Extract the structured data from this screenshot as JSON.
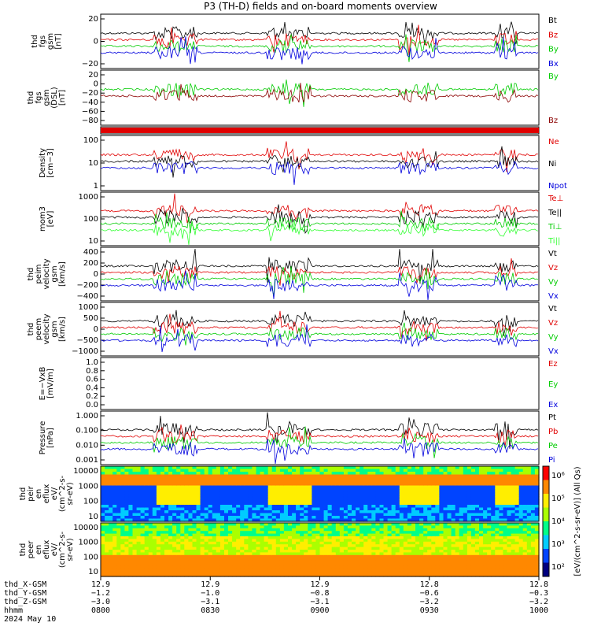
{
  "title": "P3 (TH-D) fields and on-board moments overview",
  "colors": {
    "black": "#000000",
    "red": "#e00000",
    "green": "#00cc00",
    "blue": "#0000dd",
    "darkred": "#8b0000",
    "brightgreen": "#33ff33"
  },
  "chart_data": [
    {
      "type": "line",
      "ylabel": [
        "thd",
        "fgs",
        "gsm",
        "[nT]"
      ],
      "ticks": [
        "20",
        "0",
        "−20"
      ],
      "legend": [
        {
          "name": "Bt",
          "color": "black"
        },
        {
          "name": "Bz",
          "color": "red"
        },
        {
          "name": "By",
          "color": "green"
        },
        {
          "name": "Bx",
          "color": "blue"
        }
      ]
    },
    {
      "type": "line",
      "ylabel": [
        "thd",
        "fgs",
        "gsm",
        "(DSL)",
        "[nT]"
      ],
      "ticks": [
        "20",
        "0",
        "−20",
        "−40",
        "−60",
        "−80"
      ],
      "legend": [
        {
          "name": "By",
          "color": "green"
        },
        {
          "name": "Bz",
          "color": "darkred"
        }
      ]
    },
    {
      "type": "line",
      "ylabel": [],
      "ticks": [],
      "legend": []
    },
    {
      "type": "line",
      "ylabel": [
        "Density",
        "[cm−3]"
      ],
      "ticks": [
        "100",
        "10",
        "1"
      ],
      "log": true,
      "legend": [
        {
          "name": "Ne",
          "color": "red"
        },
        {
          "name": "Ni",
          "color": "black"
        },
        {
          "name": "Npot",
          "color": "blue"
        }
      ]
    },
    {
      "type": "line",
      "ylabel": [
        "mom3",
        "[eV]"
      ],
      "ticks": [
        "1000",
        "100",
        "10"
      ],
      "log": true,
      "legend": [
        {
          "name": "Te⊥",
          "color": "red"
        },
        {
          "name": "Te||",
          "color": "black"
        },
        {
          "name": "Ti⊥",
          "color": "green"
        },
        {
          "name": "Ti||",
          "color": "brightgreen"
        }
      ]
    },
    {
      "type": "line",
      "ylabel": [
        "thd",
        "peim",
        "velocity",
        "gsm",
        "[km/s]"
      ],
      "ticks": [
        "400",
        "200",
        "0",
        "−200",
        "−400"
      ],
      "legend": [
        {
          "name": "Vt",
          "color": "black"
        },
        {
          "name": "Vz",
          "color": "red"
        },
        {
          "name": "Vy",
          "color": "green"
        },
        {
          "name": "Vx",
          "color": "blue"
        }
      ]
    },
    {
      "type": "line",
      "ylabel": [
        "thd",
        "peem",
        "velocity",
        "gsm",
        "[km/s]"
      ],
      "ticks": [
        "1000",
        "500",
        "0",
        "−500",
        "−1000"
      ],
      "legend": [
        {
          "name": "Vt",
          "color": "black"
        },
        {
          "name": "Vz",
          "color": "red"
        },
        {
          "name": "Vy",
          "color": "green"
        },
        {
          "name": "Vx",
          "color": "blue"
        }
      ]
    },
    {
      "type": "line",
      "ylabel": [
        "E=−VxB",
        "[mV/m]"
      ],
      "ticks": [
        "1.0",
        "0.8",
        "0.6",
        "0.4",
        "0.2",
        "0.0"
      ],
      "ylim": [
        0,
        1
      ],
      "legend": [
        {
          "name": "Ez",
          "color": "red"
        },
        {
          "name": "Ey",
          "color": "green"
        },
        {
          "name": "Ex",
          "color": "blue"
        }
      ]
    },
    {
      "type": "line",
      "ylabel": [
        "Pressure",
        "[nPa]"
      ],
      "ticks": [
        "1.000",
        "0.100",
        "0.010",
        "0.001"
      ],
      "log": true,
      "legend": [
        {
          "name": "Pt",
          "color": "black"
        },
        {
          "name": "Pb",
          "color": "red"
        },
        {
          "name": "Pe",
          "color": "green"
        },
        {
          "name": "Pi",
          "color": "blue"
        }
      ]
    },
    {
      "type": "heatmap",
      "ylabel": [
        "thd",
        "peir",
        "en",
        "eflux",
        "eV/",
        "(cm^2-s-",
        "sr-eV)"
      ],
      "ticks": [
        "10000",
        "1000",
        "100",
        "10"
      ]
    },
    {
      "type": "heatmap",
      "ylabel": [
        "thd",
        "peer",
        "en",
        "eflux",
        "eV/",
        "(cm^2-s-",
        "sr-eV)"
      ],
      "ticks": [
        "10000",
        "1000",
        "100",
        "10"
      ]
    }
  ],
  "colorbar": {
    "ticks": [
      "10⁶",
      "10⁵",
      "10⁴",
      "10³",
      "10²"
    ],
    "label": "[eV/(cm^2-s-sr-eV)] (All Qs)"
  },
  "x_axis": {
    "row_labels": [
      "thd_X-GSM",
      "thd_Y-GSM",
      "thd_Z-GSM",
      "hhmm",
      "2024 May 10"
    ],
    "columns": [
      [
        "12.9",
        "−1.2",
        "−3.0",
        "0800"
      ],
      [
        "12.9",
        "−1.0",
        "−3.1",
        "0830"
      ],
      [
        "12.9",
        "−0.8",
        "−3.1",
        "0900"
      ],
      [
        "12.8",
        "−0.6",
        "−3.2",
        "0930"
      ],
      [
        "12.8",
        "−0.3",
        "−3.2",
        "1000"
      ]
    ]
  }
}
